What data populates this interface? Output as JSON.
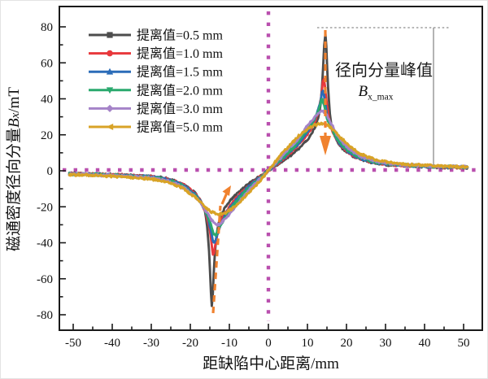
{
  "chart_data": {
    "type": "line",
    "title": "",
    "xlabel": "距缺陷中心距离/mm",
    "ylabel": "磁通密度径向分量Bx/mT",
    "ylabel_parts": {
      "prefix": "磁通密度径向分量",
      "symbol_base": "B",
      "symbol_sub": "x",
      "unit": "/mT"
    },
    "xlim": [
      -53.5,
      55
    ],
    "ylim": [
      -88.6,
      91.3
    ],
    "xticks": [
      -50,
      -40,
      -30,
      -20,
      -10,
      0,
      10,
      20,
      30,
      40,
      50
    ],
    "yticks": [
      -80,
      -60,
      -40,
      -20,
      0,
      20,
      40,
      60,
      80
    ],
    "x_minor_step": 5,
    "y_minor_step": 10,
    "grid": false,
    "legend_position": "upper-left",
    "reference_lines": {
      "color": "#b94fae",
      "vertical_x": 0,
      "horizontal_y": 0,
      "style": "dotted"
    },
    "annotations": {
      "peak_label": "径向分量峰值",
      "peak_symbol_base": "B",
      "peak_symbol_sub": "x_max",
      "guide_color": "#8c8c8c",
      "arrow_color": "#f0822f"
    },
    "series": [
      {
        "name": "提离值=0.5 mm",
        "color": "#4d4d4d",
        "marker": "square",
        "peak_positive": 76,
        "peak_negative": -75,
        "points": [
          [
            -51,
            -1.5
          ],
          [
            -45,
            -1.8
          ],
          [
            -40,
            -2.2
          ],
          [
            -35,
            -2.6
          ],
          [
            -30,
            -3.2
          ],
          [
            -26,
            -4.5
          ],
          [
            -23,
            -6.5
          ],
          [
            -21,
            -8.5
          ],
          [
            -19.5,
            -11
          ],
          [
            -18,
            -14.5
          ],
          [
            -17,
            -18
          ],
          [
            -16,
            -26
          ],
          [
            -15.2,
            -45
          ],
          [
            -14.5,
            -75
          ],
          [
            -14,
            -57
          ],
          [
            -13.4,
            -38
          ],
          [
            -12.5,
            -27
          ],
          [
            -11.5,
            -22
          ],
          [
            -10,
            -17
          ],
          [
            -8,
            -12.5
          ],
          [
            -6,
            -9
          ],
          [
            -4,
            -5.8
          ],
          [
            -2,
            -2.8
          ],
          [
            0,
            0.3
          ],
          [
            2,
            3
          ],
          [
            4,
            6
          ],
          [
            6,
            9.2
          ],
          [
            8,
            12.8
          ],
          [
            10,
            17.3
          ],
          [
            11.5,
            22.5
          ],
          [
            12.5,
            27.5
          ],
          [
            13.4,
            38
          ],
          [
            14,
            57
          ],
          [
            14.6,
            76
          ],
          [
            15.3,
            46
          ],
          [
            16,
            27
          ],
          [
            17,
            19
          ],
          [
            18,
            15
          ],
          [
            19.5,
            11.5
          ],
          [
            21,
            9
          ],
          [
            23,
            7
          ],
          [
            26,
            5
          ],
          [
            30,
            3.6
          ],
          [
            35,
            2.9
          ],
          [
            40,
            2.4
          ],
          [
            45,
            2
          ],
          [
            51,
            1.8
          ]
        ]
      },
      {
        "name": "提离值=1.0 mm",
        "color": "#e8393d",
        "marker": "circle",
        "peak_positive": 51,
        "peak_negative": -46,
        "points": [
          [
            -51,
            -1.6
          ],
          [
            -45,
            -1.9
          ],
          [
            -40,
            -2.3
          ],
          [
            -35,
            -2.7
          ],
          [
            -30,
            -3.3
          ],
          [
            -26,
            -4.7
          ],
          [
            -23,
            -6.8
          ],
          [
            -21,
            -9
          ],
          [
            -19.5,
            -11.5
          ],
          [
            -18,
            -14.8
          ],
          [
            -17,
            -18.5
          ],
          [
            -16,
            -24
          ],
          [
            -15,
            -33
          ],
          [
            -14.2,
            -46
          ],
          [
            -13.5,
            -40
          ],
          [
            -12.8,
            -32
          ],
          [
            -12,
            -27
          ],
          [
            -10.5,
            -21.5
          ],
          [
            -9,
            -17
          ],
          [
            -7,
            -12.5
          ],
          [
            -5,
            -8.5
          ],
          [
            -3,
            -5
          ],
          [
            -1,
            -1.6
          ],
          [
            1,
            1.8
          ],
          [
            3,
            5.2
          ],
          [
            5,
            8.8
          ],
          [
            7,
            13
          ],
          [
            9,
            17.5
          ],
          [
            10.5,
            22
          ],
          [
            12,
            28
          ],
          [
            12.8,
            33
          ],
          [
            13.5,
            41
          ],
          [
            14.2,
            51
          ],
          [
            15,
            36
          ],
          [
            16,
            25
          ],
          [
            17,
            19.5
          ],
          [
            18,
            15.5
          ],
          [
            19.5,
            12
          ],
          [
            21,
            9.5
          ],
          [
            23,
            7.3
          ],
          [
            26,
            5.2
          ],
          [
            30,
            3.8
          ],
          [
            35,
            3
          ],
          [
            40,
            2.5
          ],
          [
            45,
            2.1
          ],
          [
            51,
            1.9
          ]
        ]
      },
      {
        "name": "提离值=1.5 mm",
        "color": "#2b6cb8",
        "marker": "triangle-up",
        "peak_positive": 44.5,
        "peak_negative": -40,
        "points": [
          [
            -51,
            -1.7
          ],
          [
            -45,
            -2
          ],
          [
            -40,
            -2.4
          ],
          [
            -35,
            -2.8
          ],
          [
            -30,
            -3.5
          ],
          [
            -26,
            -5
          ],
          [
            -23,
            -7
          ],
          [
            -21,
            -9.3
          ],
          [
            -19.5,
            -12
          ],
          [
            -18,
            -15.2
          ],
          [
            -17,
            -18.8
          ],
          [
            -16,
            -23.5
          ],
          [
            -15,
            -30.5
          ],
          [
            -14,
            -40
          ],
          [
            -13.2,
            -36
          ],
          [
            -12.3,
            -30
          ],
          [
            -11,
            -24.5
          ],
          [
            -9.5,
            -19.5
          ],
          [
            -8,
            -15.5
          ],
          [
            -6,
            -11
          ],
          [
            -4,
            -7
          ],
          [
            -2,
            -3.4
          ],
          [
            0,
            0.2
          ],
          [
            2,
            3.8
          ],
          [
            4,
            7.4
          ],
          [
            6,
            11.4
          ],
          [
            8,
            16
          ],
          [
            9.5,
            20
          ],
          [
            11,
            25
          ],
          [
            12.3,
            31
          ],
          [
            13.2,
            37
          ],
          [
            14,
            44.5
          ],
          [
            15,
            32
          ],
          [
            16,
            24.5
          ],
          [
            17,
            20
          ],
          [
            18,
            16
          ],
          [
            19.5,
            12.5
          ],
          [
            21,
            10
          ],
          [
            23,
            7.6
          ],
          [
            26,
            5.4
          ],
          [
            30,
            4
          ],
          [
            35,
            3.1
          ],
          [
            40,
            2.6
          ],
          [
            45,
            2.2
          ],
          [
            51,
            2
          ]
        ]
      },
      {
        "name": "提离值=2.0 mm",
        "color": "#2aa96e",
        "marker": "triangle-down",
        "peak_positive": 39.5,
        "peak_negative": -35.8,
        "points": [
          [
            -51,
            -1.8
          ],
          [
            -45,
            -2.1
          ],
          [
            -40,
            -2.5
          ],
          [
            -35,
            -3
          ],
          [
            -30,
            -3.7
          ],
          [
            -26,
            -5.3
          ],
          [
            -23,
            -7.4
          ],
          [
            -21,
            -9.8
          ],
          [
            -19.5,
            -12.5
          ],
          [
            -18,
            -15.6
          ],
          [
            -17,
            -19
          ],
          [
            -16,
            -23
          ],
          [
            -15,
            -28.5
          ],
          [
            -13.8,
            -35.8
          ],
          [
            -12.8,
            -32.5
          ],
          [
            -11.5,
            -27.5
          ],
          [
            -10,
            -22.5
          ],
          [
            -8.5,
            -18
          ],
          [
            -7,
            -14
          ],
          [
            -5,
            -9.5
          ],
          [
            -3,
            -5.6
          ],
          [
            -1,
            -1.8
          ],
          [
            1,
            2.2
          ],
          [
            3,
            6
          ],
          [
            5,
            10
          ],
          [
            7,
            14.5
          ],
          [
            8.5,
            18.5
          ],
          [
            10,
            23
          ],
          [
            11.5,
            28
          ],
          [
            12.8,
            33.5
          ],
          [
            13.8,
            39.5
          ],
          [
            15,
            29.5
          ],
          [
            16,
            24
          ],
          [
            17,
            20
          ],
          [
            18,
            16.5
          ],
          [
            19.5,
            13
          ],
          [
            21,
            10.4
          ],
          [
            23,
            8
          ],
          [
            26,
            5.7
          ],
          [
            30,
            4.2
          ],
          [
            35,
            3.2
          ],
          [
            40,
            2.7
          ],
          [
            45,
            2.3
          ],
          [
            51,
            2
          ]
        ]
      },
      {
        "name": "提离值=3.0 mm",
        "color": "#a583c8",
        "marker": "diamond",
        "peak_positive": 33.3,
        "peak_negative": -29.8,
        "points": [
          [
            -51,
            -1.9
          ],
          [
            -45,
            -2.3
          ],
          [
            -40,
            -2.7
          ],
          [
            -35,
            -3.2
          ],
          [
            -30,
            -4
          ],
          [
            -26,
            -5.7
          ],
          [
            -23,
            -8
          ],
          [
            -21,
            -10.5
          ],
          [
            -19.5,
            -13
          ],
          [
            -18,
            -16
          ],
          [
            -17,
            -19
          ],
          [
            -16,
            -22.3
          ],
          [
            -15,
            -25.8
          ],
          [
            -13.8,
            -29
          ],
          [
            -12.8,
            -29.8
          ],
          [
            -11.5,
            -27.8
          ],
          [
            -10,
            -24
          ],
          [
            -8.5,
            -20
          ],
          [
            -7,
            -15.8
          ],
          [
            -5,
            -11
          ],
          [
            -3,
            -6.4
          ],
          [
            -1,
            -2.1
          ],
          [
            1,
            2.5
          ],
          [
            3,
            7
          ],
          [
            5,
            11.5
          ],
          [
            7,
            16.3
          ],
          [
            8.5,
            20.5
          ],
          [
            10,
            25
          ],
          [
            11.5,
            29
          ],
          [
            12.8,
            32.2
          ],
          [
            13.8,
            33.3
          ],
          [
            15,
            30.5
          ],
          [
            16,
            26.5
          ],
          [
            17,
            22.5
          ],
          [
            18,
            18.5
          ],
          [
            19.5,
            14.6
          ],
          [
            21,
            11.6
          ],
          [
            23,
            8.8
          ],
          [
            26,
            6.2
          ],
          [
            30,
            4.5
          ],
          [
            35,
            3.4
          ],
          [
            40,
            2.8
          ],
          [
            45,
            2.4
          ],
          [
            51,
            2.1
          ]
        ]
      },
      {
        "name": "提离值=5.0 mm",
        "color": "#d8a327",
        "marker": "triangle-left",
        "peak_positive": 26,
        "peak_negative": -24,
        "points": [
          [
            -51,
            -2.1
          ],
          [
            -45,
            -2.5
          ],
          [
            -40,
            -3
          ],
          [
            -35,
            -3.6
          ],
          [
            -30,
            -4.6
          ],
          [
            -26,
            -6.4
          ],
          [
            -23,
            -8.8
          ],
          [
            -21,
            -11.2
          ],
          [
            -19.5,
            -13.6
          ],
          [
            -18,
            -16.2
          ],
          [
            -17,
            -18.3
          ],
          [
            -16,
            -20.4
          ],
          [
            -15,
            -22.2
          ],
          [
            -13.8,
            -23.6
          ],
          [
            -12.5,
            -24
          ],
          [
            -11,
            -23.2
          ],
          [
            -9.5,
            -21.3
          ],
          [
            -8,
            -18.6
          ],
          [
            -6.5,
            -15.6
          ],
          [
            -5,
            -12.2
          ],
          [
            -3,
            -7.6
          ],
          [
            -1,
            -2.6
          ],
          [
            1,
            3
          ],
          [
            3,
            8.2
          ],
          [
            5,
            13
          ],
          [
            6.5,
            16.6
          ],
          [
            8,
            19.8
          ],
          [
            9.5,
            22.5
          ],
          [
            11,
            24.6
          ],
          [
            12.5,
            25.8
          ],
          [
            13.8,
            26
          ],
          [
            15,
            25.4
          ],
          [
            16,
            24
          ],
          [
            17,
            22
          ],
          [
            18,
            19.6
          ],
          [
            19.5,
            16.4
          ],
          [
            21,
            13.4
          ],
          [
            23,
            10.2
          ],
          [
            26,
            7.2
          ],
          [
            30,
            5
          ],
          [
            35,
            3.7
          ],
          [
            40,
            3
          ],
          [
            45,
            2.5
          ],
          [
            51,
            2.2
          ]
        ]
      }
    ]
  }
}
